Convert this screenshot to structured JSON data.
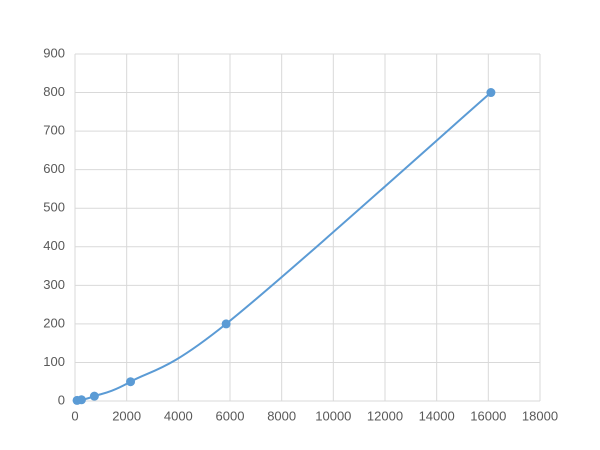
{
  "chart_data": {
    "type": "scatter",
    "x": [
      80,
      250,
      750,
      2150,
      5850,
      16100
    ],
    "series": [
      {
        "color": "#5b9bd5",
        "values": [
          1.5,
          3.1,
          12.5,
          50,
          200,
          800
        ]
      }
    ],
    "xlim": [
      0,
      18000
    ],
    "xticks": [
      0,
      2000,
      4000,
      6000,
      8000,
      10000,
      12000,
      14000,
      16000,
      18000
    ],
    "ylim": [
      0,
      900
    ],
    "yticks": [
      0,
      100,
      200,
      300,
      400,
      500,
      600,
      700,
      800,
      900
    ],
    "grid": true,
    "smooth": true
  }
}
